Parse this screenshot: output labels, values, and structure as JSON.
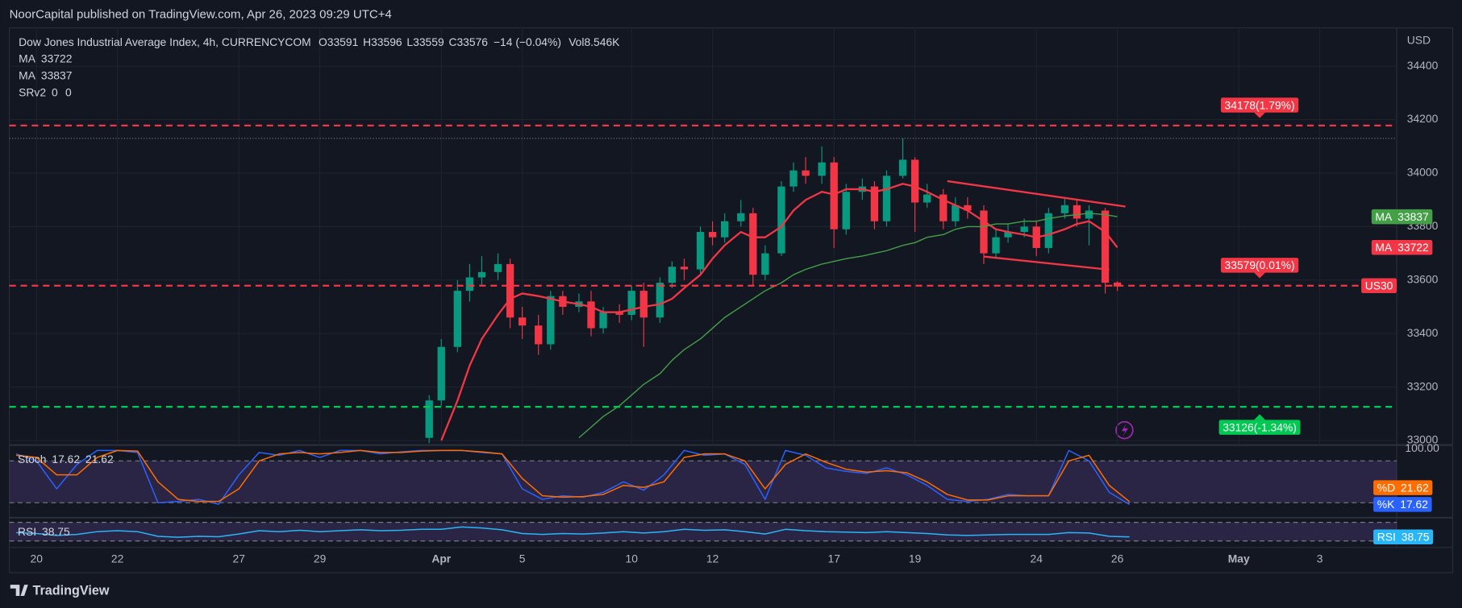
{
  "header": "NoorCapital published on TradingView.com, Apr 26, 2023 09:29 UTC+4",
  "footer": "TradingView",
  "chart_data": [
    {
      "type": "candlestick",
      "title": "Dow Jones Industrial Average Index, 4h, CURRENCYCOM",
      "ohlc_labels": [
        "O",
        "H",
        "L",
        "C"
      ],
      "change": "−14 (−0.04%)",
      "volume_label": "Vol",
      "volume": "8.546K",
      "currency": "USD",
      "symbol": "US30",
      "up_color": "#089981",
      "down_color": "#f23645",
      "x": [
        9.7,
        10.0,
        10.4,
        10.7,
        11.0,
        11.4,
        11.7,
        12.0,
        12.4,
        12.7,
        13.0,
        13.4,
        13.7,
        14.0,
        14.4,
        14.7,
        15.0,
        15.4,
        15.7,
        16.0,
        16.4,
        16.7,
        17.0,
        17.4,
        17.7,
        18.0,
        18.4,
        18.7,
        19.0,
        19.4,
        19.7,
        20.0,
        20.4,
        20.7,
        21.0,
        21.4,
        21.7,
        22.0,
        22.4,
        22.7,
        23.0,
        23.4,
        23.7,
        24.0,
        24.4,
        24.7,
        25.0,
        25.4,
        25.7,
        26.0,
        26.4,
        26.7
      ],
      "open": [
        33010,
        33150,
        33350,
        33560,
        33610,
        33630,
        33660,
        33460,
        33430,
        33360,
        33540,
        33500,
        33520,
        33420,
        33480,
        33470,
        33560,
        33460,
        33590,
        33650,
        33640,
        33780,
        33760,
        33820,
        33850,
        33620,
        33700,
        33950,
        34010,
        33990,
        34040,
        33790,
        33930,
        33950,
        33820,
        33990,
        34050,
        33890,
        33920,
        33820,
        33880,
        33860,
        33700,
        33760,
        33780,
        33800,
        33720,
        33850,
        33880,
        33830,
        33860,
        33591
      ],
      "high": [
        33170,
        33380,
        33600,
        33660,
        33690,
        33700,
        33680,
        33500,
        33470,
        33560,
        33560,
        33550,
        33560,
        33500,
        33510,
        33580,
        33590,
        33610,
        33670,
        33680,
        33800,
        33820,
        33850,
        33900,
        33870,
        33730,
        33970,
        34040,
        34060,
        34100,
        34060,
        33960,
        33980,
        33970,
        34010,
        34130,
        34060,
        33960,
        33940,
        33910,
        33910,
        33880,
        33790,
        33810,
        33830,
        33820,
        33870,
        33910,
        33900,
        33880,
        33870,
        33596
      ],
      "low": [
        32990,
        33130,
        33330,
        33520,
        33580,
        33600,
        33420,
        33380,
        33320,
        33340,
        33470,
        33480,
        33390,
        33400,
        33440,
        33450,
        33350,
        33440,
        33570,
        33600,
        33620,
        33730,
        33740,
        33800,
        33580,
        33600,
        33690,
        33930,
        33960,
        33960,
        33720,
        33770,
        33900,
        33790,
        33800,
        33980,
        33780,
        33870,
        33790,
        33800,
        33830,
        33660,
        33680,
        33740,
        33760,
        33690,
        33700,
        33830,
        33800,
        33730,
        33550,
        33559
      ],
      "close": [
        33150,
        33350,
        33560,
        33610,
        33630,
        33660,
        33460,
        33430,
        33360,
        33540,
        33500,
        33520,
        33420,
        33480,
        33470,
        33560,
        33460,
        33590,
        33650,
        33640,
        33780,
        33760,
        33820,
        33850,
        33620,
        33700,
        33950,
        34010,
        33990,
        34040,
        33790,
        33930,
        33950,
        33820,
        33990,
        34050,
        33890,
        33920,
        33820,
        33880,
        33860,
        33700,
        33760,
        33780,
        33800,
        33720,
        33850,
        33880,
        33830,
        33860,
        33590,
        33576
      ],
      "series": [
        {
          "name": "MA",
          "color": "#f23645",
          "values": [
            null,
            33000,
            33150,
            33280,
            33380,
            33470,
            33530,
            33550,
            33540,
            33530,
            33520,
            33510,
            33500,
            33480,
            33480,
            33490,
            33500,
            33510,
            33530,
            33570,
            33620,
            33680,
            33730,
            33780,
            33760,
            33760,
            33800,
            33860,
            33900,
            33930,
            33920,
            33940,
            33940,
            33930,
            33940,
            33960,
            33950,
            33930,
            33900,
            33880,
            33860,
            33820,
            33790,
            33780,
            33770,
            33760,
            33770,
            33790,
            33810,
            33820,
            33780,
            33722
          ]
        },
        {
          "name": "MA",
          "color": "#43a047",
          "values": [
            null,
            null,
            null,
            null,
            null,
            null,
            null,
            null,
            null,
            null,
            null,
            33010,
            33050,
            33090,
            33130,
            33170,
            33210,
            33250,
            33300,
            33340,
            33380,
            33420,
            33460,
            33500,
            33530,
            33560,
            33590,
            33620,
            33640,
            33660,
            33670,
            33680,
            33690,
            33700,
            33710,
            33730,
            33740,
            33760,
            33770,
            33790,
            33800,
            33800,
            33810,
            33810,
            33820,
            33820,
            33830,
            33840,
            33845,
            33850,
            33845,
            33837
          ]
        }
      ],
      "indicator": {
        "name": "SRv2",
        "color": "#2962ff",
        "values": [
          0,
          0
        ]
      },
      "levels": [
        {
          "value": 34178,
          "label": "34178(1.79%)",
          "color": "#f23645"
        },
        {
          "value": 33579,
          "label": "33579(0.01%)",
          "color": "#f23645"
        },
        {
          "value": 33126,
          "label": "33126(-1.34%)",
          "color": "#00c853"
        }
      ],
      "trendlines": [
        {
          "x": [
            22.5,
            26.9
          ],
          "y": [
            33970,
            33875
          ],
          "color": "#f23645"
        },
        {
          "x": [
            23.4,
            26.5
          ],
          "y": [
            33688,
            33639
          ],
          "color": "#f23645"
        }
      ],
      "xlim": [
        -0.67,
        33.6
      ],
      "xticks": [
        {
          "value": 0,
          "label": "20"
        },
        {
          "value": 2,
          "label": "22"
        },
        {
          "value": 5,
          "label": "27"
        },
        {
          "value": 7,
          "label": "29"
        },
        {
          "value": 10,
          "label": "Apr"
        },
        {
          "value": 12,
          "label": "5"
        },
        {
          "value": 14.7,
          "label": "10"
        },
        {
          "value": 16.7,
          "label": "12"
        },
        {
          "value": 19.7,
          "label": "17"
        },
        {
          "value": 21.7,
          "label": "19"
        },
        {
          "value": 24.7,
          "label": "24"
        },
        {
          "value": 26.7,
          "label": "26"
        },
        {
          "value": 29.7,
          "label": "May"
        },
        {
          "value": 31.7,
          "label": "3"
        }
      ],
      "ylim": [
        32983,
        34543
      ],
      "yticks": [
        33000,
        33200,
        33400,
        33600,
        33800,
        34000,
        34200,
        34400
      ],
      "grid": true
    },
    {
      "type": "line",
      "name": "Stoch",
      "x": [
        -0.5,
        0.0,
        0.5,
        1.0,
        1.5,
        2.0,
        2.5,
        3.0,
        3.5,
        4.0,
        4.5,
        5.0,
        5.5,
        6.0,
        6.5,
        7.0,
        7.5,
        8.0,
        8.5,
        9.0,
        9.5,
        10.0,
        10.5,
        11.0,
        11.5,
        12.0,
        12.5,
        13.0,
        13.5,
        14.0,
        14.5,
        15.0,
        15.5,
        16.0,
        16.5,
        17.0,
        17.5,
        18.0,
        18.5,
        19.0,
        19.5,
        20.0,
        20.5,
        21.0,
        21.5,
        22.0,
        22.5,
        23.0,
        23.5,
        24.0,
        24.5,
        25.0,
        25.5,
        26.0,
        26.5,
        27.0
      ],
      "series": [
        {
          "name": "%K",
          "color": "#2962ff",
          "values": [
            90,
            80,
            40,
            75,
            95,
            95,
            92,
            20,
            22,
            25,
            18,
            60,
            92,
            88,
            95,
            85,
            95,
            95,
            90,
            93,
            95,
            95,
            95,
            92,
            90,
            40,
            25,
            30,
            28,
            35,
            50,
            38,
            60,
            95,
            88,
            90,
            75,
            25,
            95,
            88,
            70,
            65,
            62,
            70,
            60,
            45,
            25,
            22,
            25,
            32,
            30,
            30,
            95,
            80,
            35,
            17.62
          ]
        },
        {
          "name": "%D",
          "color": "#ff6d00",
          "values": [
            88,
            85,
            60,
            60,
            85,
            95,
            94,
            50,
            25,
            22,
            22,
            40,
            80,
            90,
            92,
            90,
            92,
            95,
            92,
            92,
            94,
            95,
            95,
            93,
            90,
            55,
            30,
            28,
            29,
            32,
            45,
            42,
            50,
            85,
            90,
            90,
            80,
            40,
            75,
            90,
            78,
            68,
            64,
            66,
            63,
            50,
            32,
            24,
            24,
            30,
            30,
            30,
            80,
            88,
            45,
            21.62
          ]
        }
      ],
      "bands": [
        80,
        20
      ],
      "ylim": [
        0,
        100
      ],
      "yticks": [
        {
          "value": 100,
          "label": "100.00"
        }
      ]
    },
    {
      "type": "line",
      "name": "RSI",
      "x": [
        -0.5,
        0.0,
        0.5,
        1.0,
        1.5,
        2.0,
        2.5,
        3.0,
        3.5,
        4.0,
        4.5,
        5.0,
        5.5,
        6.0,
        6.5,
        7.0,
        7.5,
        8.0,
        8.5,
        9.0,
        9.5,
        10.0,
        10.5,
        11.0,
        11.5,
        12.0,
        12.5,
        13.0,
        13.5,
        14.0,
        14.5,
        15.0,
        15.5,
        16.0,
        16.5,
        17.0,
        17.5,
        18.0,
        18.5,
        19.0,
        19.5,
        20.0,
        20.5,
        21.0,
        21.5,
        22.0,
        22.5,
        23.0,
        23.5,
        24.0,
        24.5,
        25.0,
        25.5,
        26.0,
        26.5,
        27.0
      ],
      "series": [
        {
          "name": "RSI",
          "color": "#29b6f6",
          "values": [
            48,
            46,
            42,
            44,
            50,
            52,
            50,
            40,
            38,
            40,
            39,
            45,
            52,
            50,
            53,
            50,
            52,
            54,
            52,
            53,
            55,
            55,
            60,
            58,
            54,
            46,
            44,
            46,
            45,
            47,
            50,
            47,
            50,
            55,
            53,
            54,
            50,
            45,
            55,
            52,
            50,
            49,
            48,
            50,
            48,
            46,
            43,
            42,
            43,
            44,
            44,
            44,
            48,
            47,
            40,
            38.75
          ]
        }
      ],
      "bands": [
        70,
        30
      ],
      "ylim": [
        24,
        76
      ]
    }
  ]
}
